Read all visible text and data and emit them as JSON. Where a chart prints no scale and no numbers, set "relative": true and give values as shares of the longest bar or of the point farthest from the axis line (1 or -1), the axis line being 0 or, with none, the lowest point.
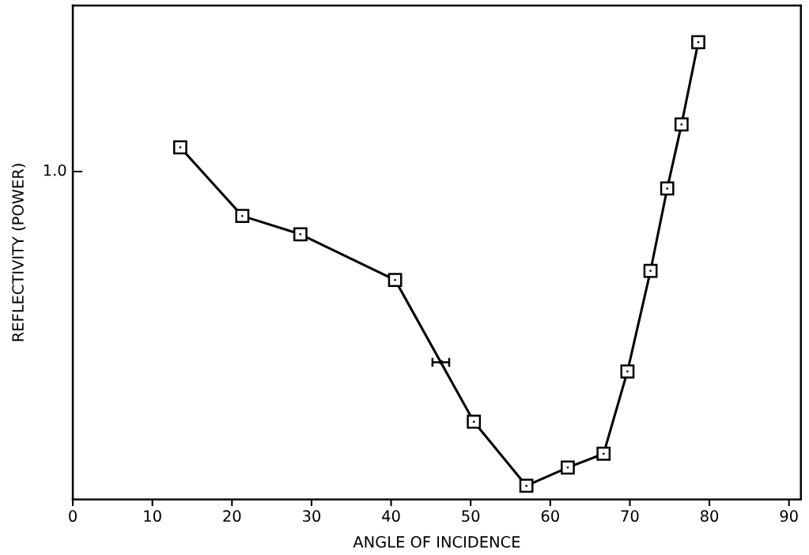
{
  "chart_data": {
    "type": "line",
    "relative": true,
    "xlabel": "ANGLE OF INCIDENCE",
    "ylabel": "REFLECTIVITY (POWER)",
    "xlim": [
      0,
      91.5
    ],
    "xticks": [
      0,
      10,
      20,
      30,
      40,
      50,
      60,
      70,
      80,
      90
    ],
    "grid": false,
    "legend": false,
    "series": [
      {
        "color": "#000000",
        "marker": "square",
        "x": [
          13.5,
          21.3,
          28.6,
          40.5,
          50.4,
          57.0,
          62.2,
          66.7,
          69.7,
          72.6,
          74.7,
          76.5,
          78.6
        ],
        "values": [
          0.77,
          0.62,
          0.58,
          0.48,
          0.17,
          0.03,
          0.07,
          0.1,
          0.28,
          0.5,
          0.68,
          0.82,
          1.0
        ]
      },
      {
        "type": "scatter",
        "color": "#000000",
        "marker": "circle",
        "x": [
          46.3
        ],
        "values": [
          0.3
        ],
        "xerrors": [
          [
            45.2,
            47.3
          ]
        ]
      }
    ],
    "annotations": [
      "1.0"
    ]
  }
}
